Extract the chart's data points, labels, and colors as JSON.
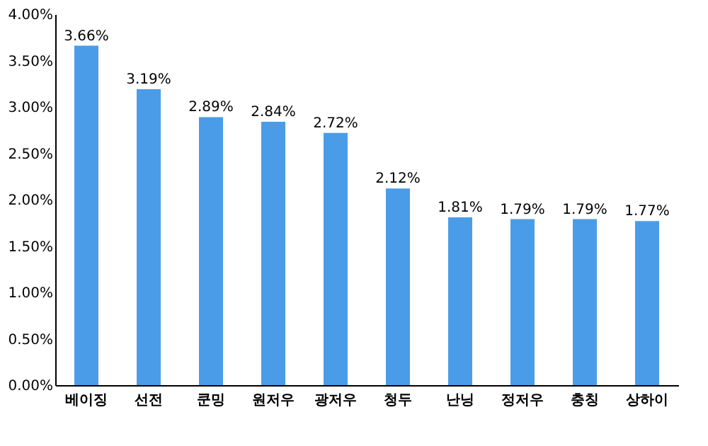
{
  "chart_data": {
    "type": "bar",
    "categories": [
      "베이징",
      "선전",
      "쿤밍",
      "원저우",
      "광저우",
      "청두",
      "난닝",
      "정저우",
      "충칭",
      "상하이"
    ],
    "values": [
      3.66,
      3.19,
      2.89,
      2.84,
      2.72,
      2.12,
      1.81,
      1.79,
      1.79,
      1.77
    ],
    "value_labels": [
      "3.66%",
      "3.19%",
      "2.89%",
      "2.84%",
      "2.72%",
      "2.12%",
      "1.81%",
      "1.79%",
      "1.79%",
      "1.77%"
    ],
    "color": "#4b9ce8",
    "ylim": [
      0,
      4
    ],
    "yticks": [
      {
        "value": 0,
        "label": "0.00%"
      },
      {
        "value": 0.5,
        "label": "0.50%"
      },
      {
        "value": 1,
        "label": "1.00%"
      },
      {
        "value": 1.5,
        "label": "1.50%"
      },
      {
        "value": 2,
        "label": "2.00%"
      },
      {
        "value": 2.5,
        "label": "2.50%"
      },
      {
        "value": 3,
        "label": "3.00%"
      },
      {
        "value": 3.5,
        "label": "3.50%"
      },
      {
        "value": 4,
        "label": "4.00%"
      }
    ],
    "grid": false
  }
}
